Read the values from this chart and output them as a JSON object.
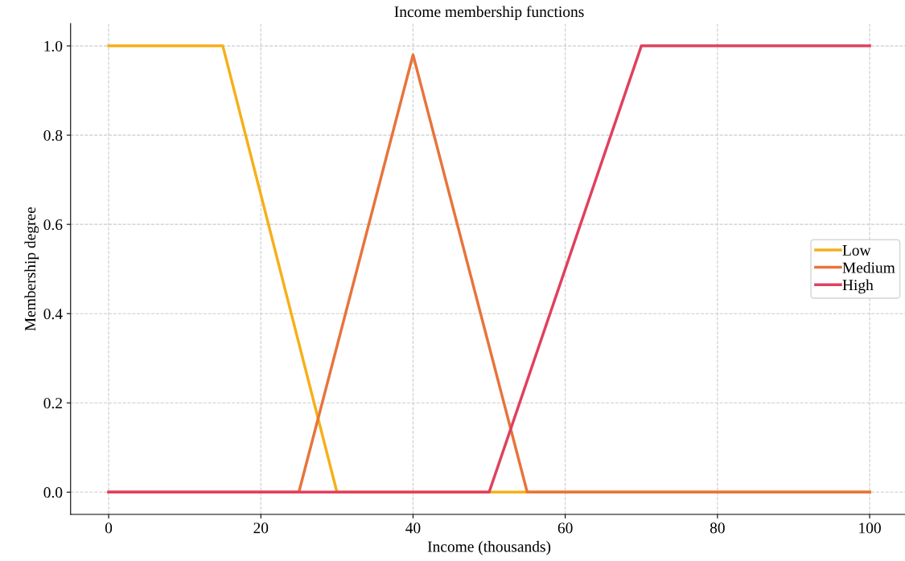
{
  "chart_data": {
    "type": "line",
    "title": "Income membership functions",
    "xlabel": "Income (thousands)",
    "ylabel": "Membership degree",
    "xlim": [
      -5,
      105
    ],
    "xticks": [
      0,
      20,
      40,
      60,
      80,
      100
    ],
    "ylim": [
      -0.05,
      1.05
    ],
    "yticks": [
      {
        "value": 0,
        "label": "0.0"
      },
      {
        "value": 0.2,
        "label": "0.2"
      },
      {
        "value": 0.4,
        "label": "0.4"
      },
      {
        "value": 0.6,
        "label": "0.6"
      },
      {
        "value": 0.8,
        "label": "0.8"
      },
      {
        "value": 1,
        "label": "1.0"
      }
    ],
    "grid": true,
    "legend": "right",
    "line_style": "solid",
    "series": [
      {
        "name": "Low",
        "color": "#f5b01a",
        "x": [
          0,
          15,
          30,
          100
        ],
        "values": [
          1,
          1,
          0,
          0
        ]
      },
      {
        "name": "Medium",
        "color": "#e8743b",
        "x": [
          0,
          25,
          40,
          55,
          100
        ],
        "values": [
          0,
          0,
          0.98,
          0,
          0
        ]
      },
      {
        "name": "High",
        "color": "#e0405e",
        "x": [
          0,
          50,
          70,
          100
        ],
        "values": [
          0,
          0,
          1,
          1
        ]
      }
    ]
  }
}
